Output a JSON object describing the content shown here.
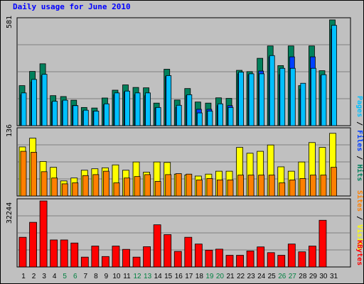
{
  "title": "Daily usage for June 2010",
  "colors": {
    "hits": "#00805c",
    "files": "#0040ff",
    "pages": "#00c0ff",
    "visits": "#ffff00",
    "sites": "#ff8000",
    "kbytes": "#ff0000",
    "weekend_label": "#008040",
    "weekday_label": "#000000",
    "background": "#c0c0c0"
  },
  "side_labels": {
    "pages": "Pages",
    "files": "Files",
    "hits": "Hits",
    "sites": "Sites",
    "visits": "Visits",
    "kbytes": "KBytes",
    "sep": " / "
  },
  "chart_data": [
    {
      "type": "bar",
      "panel": "hits-files-pages",
      "ymax_label": "581",
      "ylim": [
        0,
        581
      ],
      "categories": [
        "1",
        "2",
        "3",
        "4",
        "5",
        "6",
        "7",
        "8",
        "9",
        "10",
        "11",
        "12",
        "13",
        "14",
        "15",
        "16",
        "17",
        "18",
        "19",
        "20",
        "21",
        "22",
        "23",
        "24",
        "25",
        "26",
        "27",
        "28",
        "29",
        "30",
        "31"
      ],
      "weekend_days": [
        "5",
        "6",
        "12",
        "13",
        "19",
        "20",
        "26",
        "27"
      ],
      "series": [
        {
          "name": "Hits",
          "values": [
            220,
            298,
            340,
            165,
            160,
            140,
            100,
            97,
            152,
            195,
            224,
            210,
            208,
            124,
            310,
            141,
            204,
            130,
            124,
            153,
            150,
            304,
            297,
            370,
            438,
            330,
            438,
            220,
            438,
            302,
            581
          ]
        },
        {
          "name": "Files",
          "values": [
            170,
            240,
            275,
            130,
            135,
            111,
            80,
            80,
            115,
            170,
            185,
            170,
            165,
            98,
            270,
            100,
            165,
            90,
            90,
            110,
            110,
            285,
            280,
            300,
            378,
            280,
            378,
            200,
            378,
            275,
            530
          ]
        },
        {
          "name": "Pages",
          "values": [
            180,
            254,
            282,
            134,
            140,
            110,
            85,
            80,
            120,
            180,
            190,
            180,
            180,
            100,
            275,
            112,
            170,
            70,
            80,
            120,
            100,
            294,
            285,
            285,
            385,
            315,
            315,
            233,
            315,
            280,
            551
          ]
        }
      ]
    },
    {
      "type": "bar",
      "panel": "visits-sites",
      "ymax_label": "136",
      "ylim": [
        0,
        136
      ],
      "categories": [
        "1",
        "2",
        "3",
        "4",
        "5",
        "6",
        "7",
        "8",
        "9",
        "10",
        "11",
        "12",
        "13",
        "14",
        "15",
        "16",
        "17",
        "18",
        "19",
        "20",
        "21",
        "22",
        "23",
        "24",
        "25",
        "26",
        "27",
        "28",
        "29",
        "30",
        "31"
      ],
      "series": [
        {
          "name": "Visits",
          "values": [
            101,
            119,
            71,
            59,
            31,
            37,
            53,
            56,
            58,
            64,
            53,
            70,
            49,
            70,
            69,
            45,
            43,
            41,
            45,
            51,
            51,
            100,
            88,
            92,
            105,
            60,
            51,
            70,
            110,
            100,
            129
          ]
        },
        {
          "name": "Sites",
          "values": [
            92,
            90,
            50,
            37,
            25,
            27,
            42,
            44,
            51,
            27,
            37,
            40,
            44,
            30,
            44,
            46,
            45,
            33,
            36,
            33,
            33,
            43,
            43,
            43,
            43,
            27,
            33,
            36,
            43,
            43,
            59
          ]
        }
      ]
    },
    {
      "type": "bar",
      "panel": "kbytes",
      "ymax_label": "32244",
      "ylim": [
        0,
        32244
      ],
      "categories": [
        "1",
        "2",
        "3",
        "4",
        "5",
        "6",
        "7",
        "8",
        "9",
        "10",
        "11",
        "12",
        "13",
        "14",
        "15",
        "16",
        "17",
        "18",
        "19",
        "20",
        "21",
        "22",
        "23",
        "24",
        "25",
        "26",
        "27",
        "28",
        "29",
        "30",
        "31"
      ],
      "series": [
        {
          "name": "KBytes",
          "values": [
            14500,
            21800,
            32244,
            13200,
            13200,
            11700,
            4800,
            10200,
            5100,
            10200,
            8600,
            4800,
            9900,
            20600,
            15800,
            7600,
            14500,
            11200,
            8200,
            8700,
            5700,
            5700,
            7800,
            9800,
            7000,
            5700,
            11200,
            7400,
            10200,
            22800,
            0
          ]
        }
      ]
    }
  ]
}
